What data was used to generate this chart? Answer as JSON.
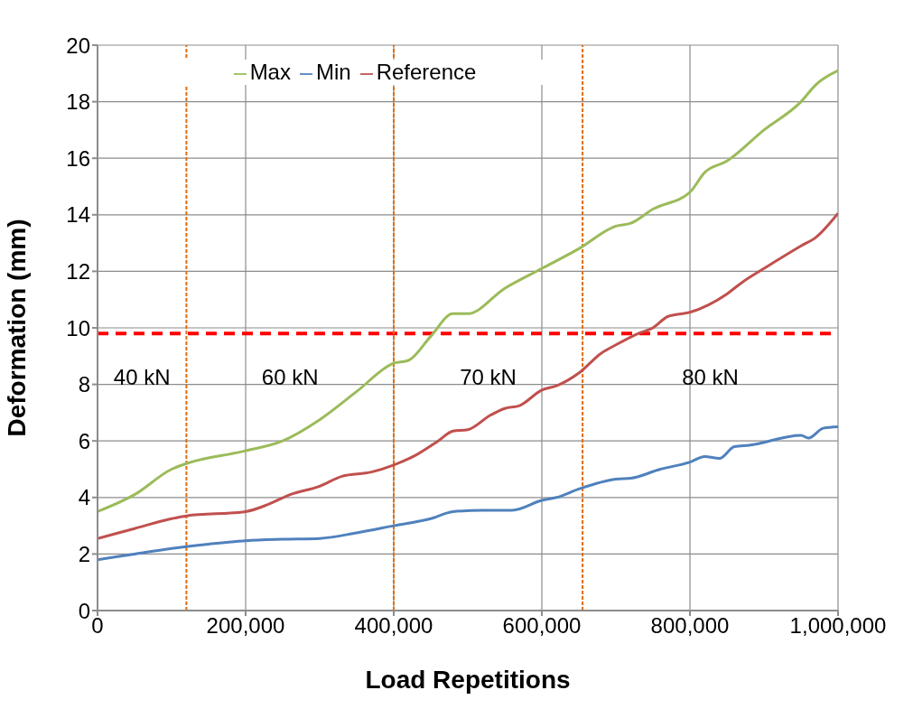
{
  "chart_data": {
    "type": "line",
    "xlabel": "Load Repetitions",
    "ylabel": "Deformation (mm)",
    "xlim": [
      0,
      1000000
    ],
    "xticks": [
      {
        "value": 0,
        "label": "0"
      },
      {
        "value": 200000,
        "label": "200,000"
      },
      {
        "value": 400000,
        "label": "400,000"
      },
      {
        "value": 600000,
        "label": "600,000"
      },
      {
        "value": 800000,
        "label": "800,000"
      },
      {
        "value": 1000000,
        "label": "1,000,000"
      }
    ],
    "ylim": [
      0,
      20
    ],
    "yticks": [
      0,
      2,
      4,
      6,
      8,
      10,
      12,
      14,
      16,
      18,
      20
    ],
    "grid": true,
    "legend": "top",
    "marker": "none",
    "line_style": "solid",
    "series": [
      {
        "name": "Max",
        "color": "#9bbb59",
        "x": [
          0,
          50000,
          100000,
          120000,
          200000,
          250000,
          300000,
          350000,
          400000,
          420000,
          450000,
          480000,
          500000,
          550000,
          600000,
          650000,
          700000,
          720000,
          750000,
          800000,
          820000,
          850000,
          900000,
          950000,
          970000,
          1000000
        ],
        "values": [
          3.5,
          4.1,
          5.0,
          5.2,
          5.65,
          6.0,
          6.75,
          7.75,
          8.75,
          8.85,
          9.7,
          10.5,
          10.5,
          11.4,
          12.1,
          12.8,
          13.6,
          13.7,
          14.2,
          14.8,
          15.5,
          15.9,
          17.0,
          18.0,
          18.6,
          19.1
        ]
      },
      {
        "name": "Reference",
        "color": "#c0504d",
        "x": [
          0,
          50000,
          100000,
          120000,
          200000,
          230000,
          260000,
          300000,
          330000,
          370000,
          400000,
          430000,
          460000,
          480000,
          500000,
          530000,
          550000,
          570000,
          600000,
          620000,
          650000,
          680000,
          700000,
          730000,
          750000,
          770000,
          800000,
          850000,
          870000,
          900000,
          950000,
          970000,
          1000000
        ],
        "values": [
          2.55,
          2.9,
          3.25,
          3.35,
          3.5,
          3.75,
          4.1,
          4.4,
          4.75,
          4.9,
          5.15,
          5.5,
          6.0,
          6.35,
          6.4,
          6.9,
          7.15,
          7.25,
          7.8,
          7.95,
          8.4,
          9.1,
          9.4,
          9.8,
          10.0,
          10.4,
          10.55,
          11.2,
          11.6,
          12.1,
          12.9,
          13.2,
          14.05
        ]
      },
      {
        "name": "Min",
        "color": "#4f81bd",
        "x": [
          0,
          50000,
          100000,
          150000,
          200000,
          250000,
          300000,
          350000,
          400000,
          450000,
          480000,
          520000,
          560000,
          600000,
          620000,
          650000,
          700000,
          720000,
          760000,
          800000,
          820000,
          840000,
          860000,
          880000,
          950000,
          960000,
          980000,
          1000000
        ],
        "values": [
          1.8,
          2.0,
          2.2,
          2.35,
          2.47,
          2.52,
          2.55,
          2.75,
          3.0,
          3.25,
          3.5,
          3.55,
          3.55,
          3.9,
          4.0,
          4.3,
          4.65,
          4.68,
          5.0,
          5.25,
          5.45,
          5.38,
          5.8,
          5.85,
          6.2,
          6.1,
          6.45,
          6.5
        ]
      }
    ],
    "ref_lines": [
      {
        "axis": "y",
        "value": 9.8,
        "color": "#ff0000",
        "line_style": "dashed"
      },
      {
        "axis": "x",
        "value": 120000,
        "color": "#e46c0a",
        "line_style": "dotted"
      },
      {
        "axis": "x",
        "value": 400000,
        "color": "#e46c0a",
        "line_style": "dotted"
      },
      {
        "axis": "x",
        "value": 655000,
        "color": "#e46c0a",
        "line_style": "dotted"
      }
    ],
    "annotations": [
      "40 kN",
      "60 kN",
      "70 kN",
      "80 kN"
    ]
  }
}
